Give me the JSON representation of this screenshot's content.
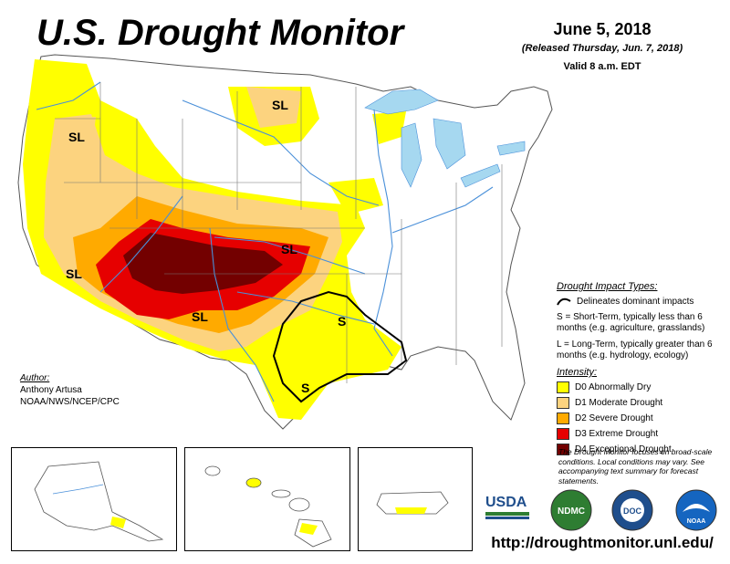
{
  "header": {
    "title": "U.S. Drought Monitor",
    "date": "June 5, 2018",
    "released": "(Released Thursday, Jun. 7, 2018)",
    "valid": "Valid 8 a.m. EDT"
  },
  "colors": {
    "D0": "#ffff00",
    "D1": "#fcd37f",
    "D2": "#ffaa00",
    "D3": "#e60000",
    "D4": "#730000",
    "water": "#a6d8f0",
    "rivers": "#4a90d9"
  },
  "map_labels": {
    "sl_oregon": "SL",
    "sl_north_dakota": "SL",
    "sl_california": "SL",
    "sl_new_mexico": "SL",
    "sl_kansas": "SL",
    "s_louisiana": "S",
    "s_texas": "S"
  },
  "legend": {
    "impact_heading": "Drought Impact Types:",
    "impact_line": "Delineates dominant impacts",
    "short_term": "S = Short-Term, typically less than 6 months (e.g. agriculture, grasslands)",
    "long_term": "L = Long-Term, typically greater than 6 months (e.g. hydrology, ecology)",
    "intensity_heading": "Intensity:",
    "levels": [
      {
        "code": "D0",
        "label": "D0 Abnormally Dry"
      },
      {
        "code": "D1",
        "label": "D1 Moderate Drought"
      },
      {
        "code": "D2",
        "label": "D2 Severe Drought"
      },
      {
        "code": "D3",
        "label": "D3 Extreme Drought"
      },
      {
        "code": "D4",
        "label": "D4 Exceptional Drought"
      }
    ]
  },
  "author": {
    "heading": "Author:",
    "name": "Anthony Artusa",
    "org": "NOAA/NWS/NCEP/CPC"
  },
  "disclaimer": "The Drought Monitor focuses on broad-scale conditions. Local conditions may vary. See accompanying text summary for forecast statements.",
  "logos": {
    "usda": "USDA",
    "ndmc": "NDMC",
    "commerce": "DOC",
    "noaa": "NOAA"
  },
  "url": "http://droughtmonitor.unl.edu/"
}
